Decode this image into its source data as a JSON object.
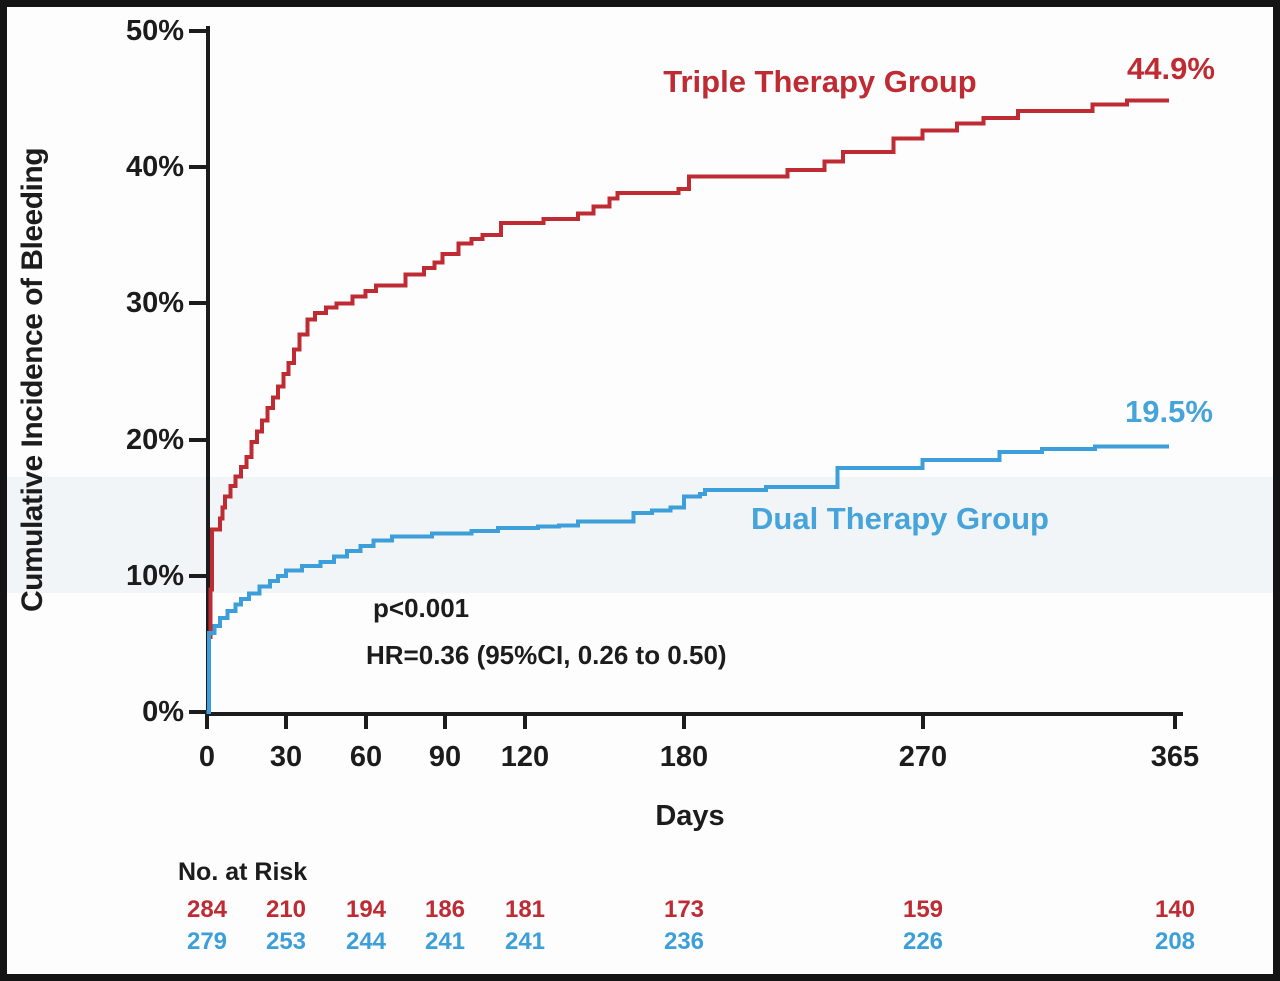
{
  "chart_data": {
    "type": "line",
    "subtype": "kaplan-meier-cumulative-incidence-step-curves",
    "title": "",
    "xlabel": "Days",
    "ylabel": "Cumulative Incidence of Bleeding",
    "xlim": [
      0,
      365
    ],
    "ylim": [
      0,
      50
    ],
    "grid": false,
    "legend_position": "inline-curve-labels",
    "x_ticks": [
      0,
      30,
      60,
      90,
      120,
      180,
      270,
      365
    ],
    "y_tick_labels": [
      "0%",
      "10%",
      "20%",
      "30%",
      "40%",
      "50%"
    ],
    "annotations": {
      "p_value": "p<0.001",
      "hazard_ratio": "HR=0.36 (95%CI, 0.26 to 0.50)"
    },
    "series": [
      {
        "name": "Triple Therapy Group",
        "color": "#bf2b33",
        "end_label": "44.9%",
        "step": true,
        "points": [
          [
            0,
            0
          ],
          [
            1,
            5.5
          ],
          [
            1.5,
            9
          ],
          [
            2,
            13.4
          ],
          [
            5,
            14.2
          ],
          [
            6,
            15.0
          ],
          [
            7,
            15.8
          ],
          [
            9,
            16.6
          ],
          [
            11,
            17.3
          ],
          [
            13,
            18.0
          ],
          [
            15,
            18.7
          ],
          [
            17,
            19.8
          ],
          [
            19,
            20.6
          ],
          [
            21,
            21.4
          ],
          [
            23,
            22.3
          ],
          [
            25,
            23.1
          ],
          [
            27,
            23.9
          ],
          [
            29,
            24.8
          ],
          [
            31,
            25.6
          ],
          [
            33,
            26.6
          ],
          [
            35,
            27.7
          ],
          [
            38,
            28.8
          ],
          [
            41,
            29.3
          ],
          [
            45,
            29.7
          ],
          [
            49,
            30.0
          ],
          [
            55,
            30.5
          ],
          [
            60,
            30.9
          ],
          [
            64,
            31.3
          ],
          [
            75,
            32.1
          ],
          [
            82,
            32.6
          ],
          [
            86,
            33.0
          ],
          [
            89,
            33.6
          ],
          [
            95,
            34.4
          ],
          [
            100,
            34.7
          ],
          [
            104,
            35.0
          ],
          [
            111,
            35.9
          ],
          [
            127,
            36.2
          ],
          [
            140,
            36.6
          ],
          [
            146,
            37.1
          ],
          [
            152,
            37.7
          ],
          [
            155,
            38.1
          ],
          [
            178,
            38.4
          ],
          [
            182,
            39.3
          ],
          [
            219,
            39.8
          ],
          [
            233,
            40.4
          ],
          [
            240,
            41.1
          ],
          [
            259,
            42.1
          ],
          [
            270,
            42.7
          ],
          [
            283,
            43.2
          ],
          [
            293,
            43.6
          ],
          [
            306,
            44.1
          ],
          [
            334,
            44.6
          ],
          [
            347,
            44.9
          ],
          [
            363,
            44.9
          ]
        ]
      },
      {
        "name": "Dual Therapy Group",
        "color": "#3d9fd9",
        "end_label": "19.5%",
        "step": true,
        "points": [
          [
            0,
            0
          ],
          [
            1,
            5.8
          ],
          [
            3,
            6.3
          ],
          [
            5,
            6.9
          ],
          [
            8,
            7.4
          ],
          [
            11,
            7.9
          ],
          [
            13,
            8.3
          ],
          [
            16,
            8.7
          ],
          [
            20,
            9.2
          ],
          [
            24,
            9.6
          ],
          [
            27,
            10.0
          ],
          [
            30,
            10.4
          ],
          [
            36,
            10.7
          ],
          [
            43,
            11.0
          ],
          [
            48,
            11.4
          ],
          [
            53,
            11.8
          ],
          [
            58,
            12.2
          ],
          [
            63,
            12.6
          ],
          [
            70,
            12.9
          ],
          [
            85,
            13.1
          ],
          [
            100,
            13.3
          ],
          [
            110,
            13.5
          ],
          [
            125,
            13.6
          ],
          [
            133,
            13.7
          ],
          [
            140,
            14.0
          ],
          [
            161,
            14.6
          ],
          [
            168,
            14.8
          ],
          [
            175,
            15.0
          ],
          [
            180,
            15.8
          ],
          [
            186,
            16.0
          ],
          [
            188,
            16.3
          ],
          [
            211,
            16.5
          ],
          [
            238,
            17.9
          ],
          [
            270,
            18.5
          ],
          [
            299,
            19.1
          ],
          [
            315,
            19.3
          ],
          [
            335,
            19.5
          ],
          [
            363,
            19.5
          ]
        ]
      }
    ],
    "risk_table": {
      "title": "No. at Risk",
      "days": [
        0,
        30,
        60,
        90,
        120,
        180,
        270,
        365
      ],
      "rows": [
        {
          "name": "Triple Therapy Group",
          "color": "#bf2b33",
          "values": [
            284,
            210,
            194,
            186,
            181,
            173,
            159,
            140
          ]
        },
        {
          "name": "Dual Therapy Group",
          "color": "#3d9fd9",
          "values": [
            279,
            253,
            244,
            241,
            241,
            236,
            226,
            208
          ]
        }
      ]
    }
  }
}
